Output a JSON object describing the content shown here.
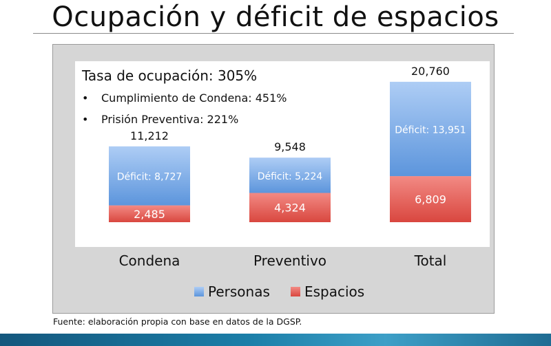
{
  "page_title": "Ocupación y déficit de espacios",
  "source_note": "Fuente: elaboración propia con base en datos de la DGSP.",
  "chart_data": {
    "type": "bar",
    "stacked": true,
    "annotations": {
      "headline": "Tasa de ocupación: 305%",
      "bullets": [
        "Cumplimiento de Condena: 451%",
        "Prisión Preventiva: 221%"
      ]
    },
    "categories": [
      "Condena",
      "Preventivo",
      "Total"
    ],
    "totals": [
      11212,
      9548,
      20760
    ],
    "total_labels": [
      "11,212",
      "9,548",
      "20,760"
    ],
    "series": [
      {
        "name": "Espacios",
        "values": [
          2485,
          4324,
          6809
        ],
        "labels": [
          "2,485",
          "4,324",
          "6,809"
        ],
        "color_top": "#f28a84",
        "color_bottom": "#d9473f"
      },
      {
        "name": "Personas",
        "values": [
          8727,
          5224,
          13951
        ],
        "labels": [
          "Déficit: 8,727",
          "Déficit: 5,224",
          "Déficit: 13,951"
        ],
        "color_top": "#aecdf5",
        "color_bottom": "#5c95dc"
      }
    ],
    "legend_order": [
      "Personas",
      "Espacios"
    ],
    "legend_position": "bottom",
    "ylim": [
      0,
      23800
    ],
    "grid": false,
    "plot_background": "#ffffff",
    "frame_background": "#d6d6d6"
  }
}
